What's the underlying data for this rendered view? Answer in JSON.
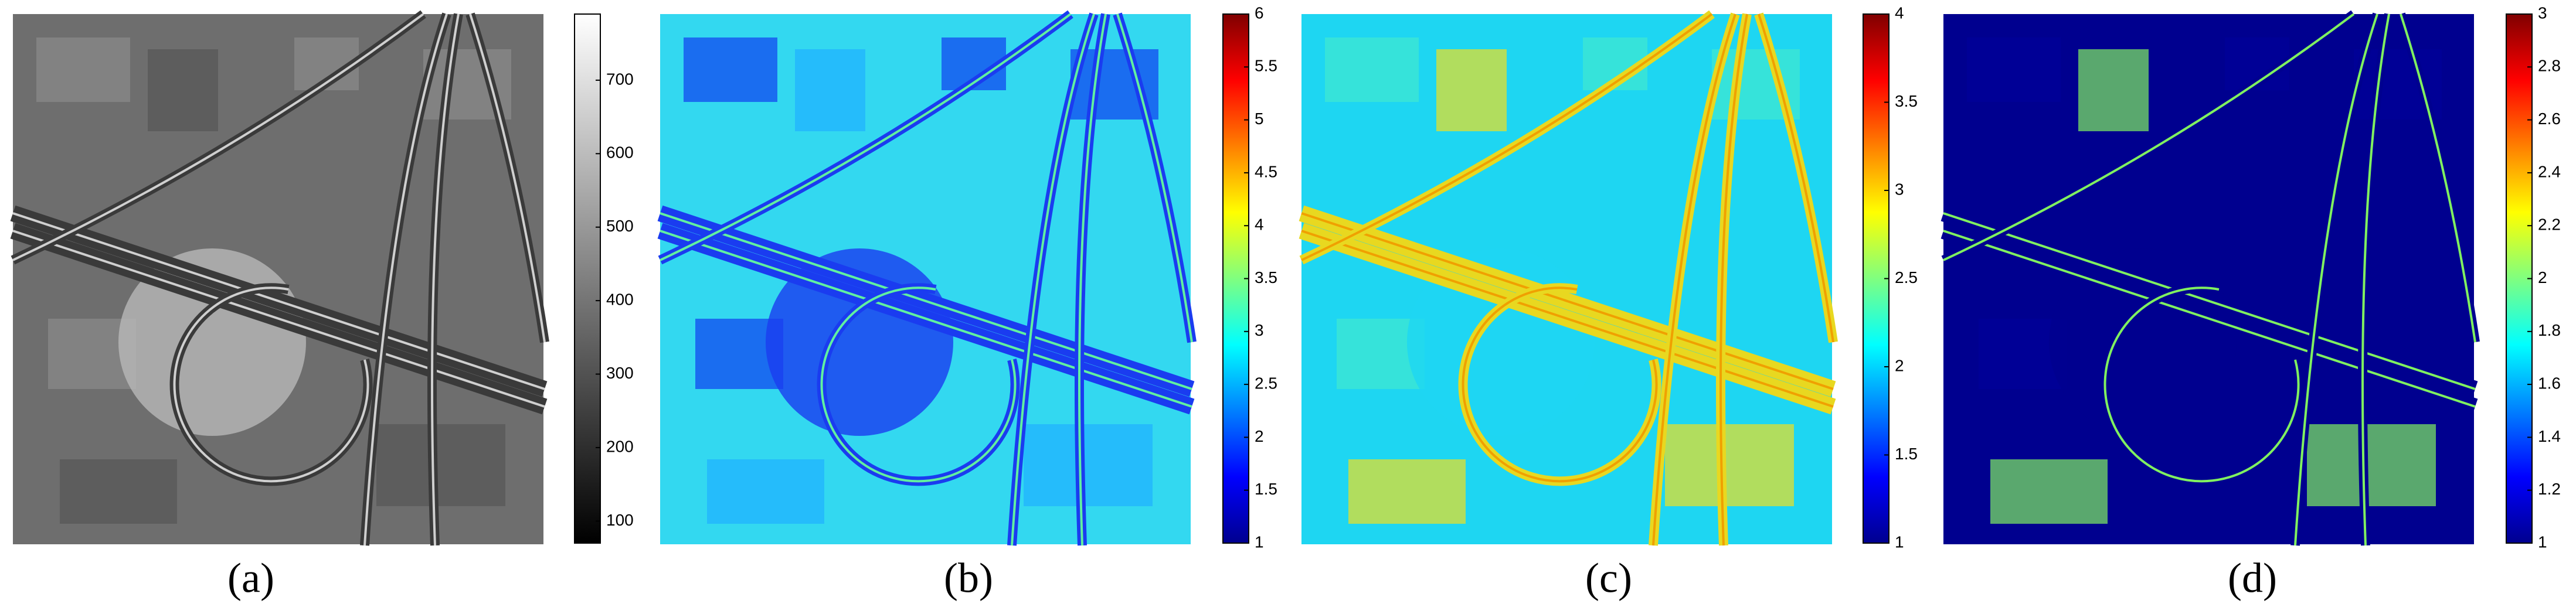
{
  "panels": [
    {
      "label": "(a)",
      "colormap": "gray",
      "clim": [
        70,
        790
      ],
      "ticks": [
        100,
        200,
        300,
        400,
        500,
        600,
        700
      ]
    },
    {
      "label": "(b)",
      "colormap": "jet",
      "clim": [
        1,
        6
      ],
      "ticks": [
        1,
        1.5,
        2,
        2.5,
        3,
        3.5,
        4,
        4.5,
        5,
        5.5,
        6
      ]
    },
    {
      "label": "(c)",
      "colormap": "jet",
      "clim": [
        1,
        4
      ],
      "ticks": [
        1,
        1.5,
        2,
        2.5,
        3,
        3.5,
        4
      ]
    },
    {
      "label": "(d)",
      "colormap": "jet",
      "clim": [
        1,
        3
      ],
      "ticks": [
        1,
        1.2,
        1.4,
        1.6,
        1.8,
        2,
        2.2,
        2.4,
        2.6,
        2.8,
        3
      ]
    }
  ]
}
